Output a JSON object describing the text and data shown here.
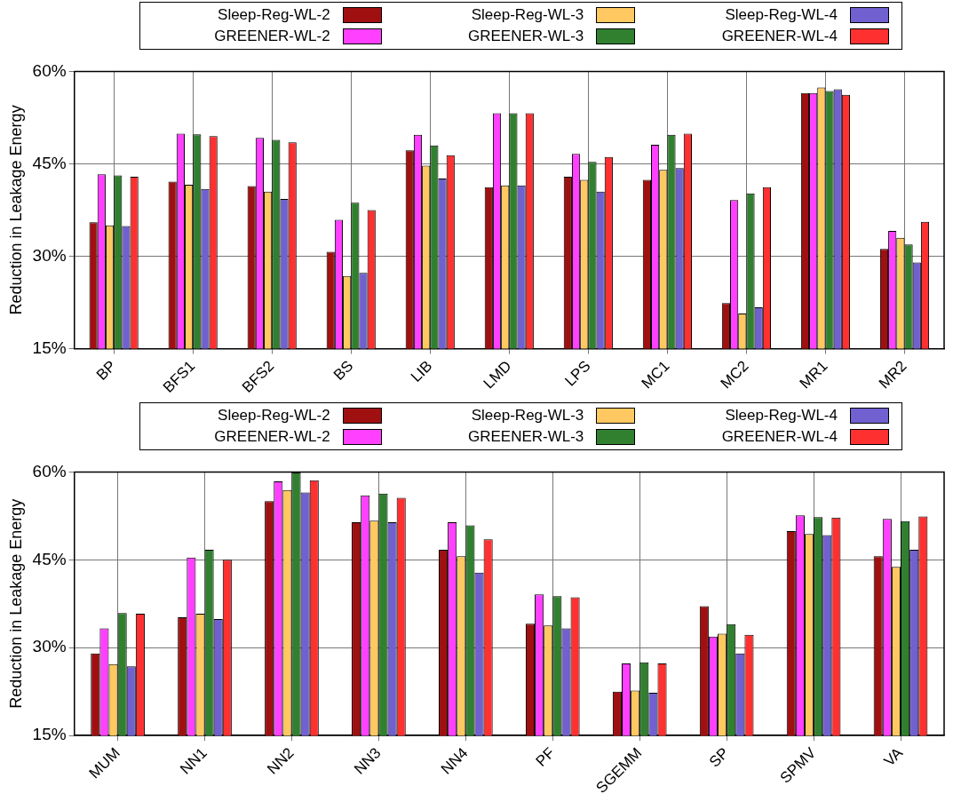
{
  "chart_data": [
    {
      "type": "bar",
      "ylabel": "Reduction in Leakage Energy",
      "categories": [
        "BP",
        "BFS1",
        "BFS2",
        "BS",
        "LIB",
        "LMD",
        "LPS",
        "MC1",
        "MC2",
        "MR1",
        "MR2"
      ],
      "ylim": [
        15,
        60
      ],
      "yticks": [
        {
          "value": 15,
          "label": "15%"
        },
        {
          "value": 30,
          "label": "30%"
        },
        {
          "value": 45,
          "label": "45%"
        },
        {
          "value": 60,
          "label": "60%"
        }
      ],
      "grid": true,
      "legend": "top",
      "series": [
        {
          "name": "Sleep-Reg-WL-2",
          "color": "#a01010",
          "values": [
            35.5,
            42.1,
            41.4,
            30.7,
            47.2,
            41.2,
            42.9,
            42.4,
            22.4,
            56.5,
            31.2
          ]
        },
        {
          "name": "GREENER-WL-2",
          "color": "#ff40ff",
          "values": [
            43.3,
            49.9,
            49.2,
            35.9,
            49.7,
            53.2,
            46.6,
            48.1,
            39.1,
            56.5,
            34.1
          ]
        },
        {
          "name": "Sleep-Reg-WL-3",
          "color": "#ffc860",
          "values": [
            35.0,
            41.6,
            40.5,
            26.8,
            44.7,
            41.5,
            42.4,
            44.0,
            20.7,
            57.4,
            33.0
          ]
        },
        {
          "name": "GREENER-WL-3",
          "color": "#308030",
          "values": [
            43.1,
            49.8,
            48.9,
            38.7,
            48.0,
            53.2,
            45.3,
            49.7,
            40.2,
            56.8,
            31.9
          ]
        },
        {
          "name": "Sleep-Reg-WL-4",
          "color": "#7060d0",
          "values": [
            34.9,
            40.9,
            39.3,
            27.3,
            42.6,
            41.5,
            40.5,
            44.3,
            21.7,
            57.1,
            29.0
          ]
        },
        {
          "name": "GREENER-WL-4",
          "color": "#ff3030",
          "values": [
            42.9,
            49.5,
            48.5,
            37.5,
            46.4,
            53.2,
            46.1,
            49.9,
            41.2,
            56.2,
            35.6
          ]
        }
      ]
    },
    {
      "type": "bar",
      "ylabel": "Reduction in Leakage Energy",
      "categories": [
        "MUM",
        "NN1",
        "NN2",
        "NN3",
        "NN4",
        "PF",
        "SGEMM",
        "SP",
        "SPMV",
        "VA"
      ],
      "ylim": [
        15,
        60
      ],
      "yticks": [
        {
          "value": 15,
          "label": "15%"
        },
        {
          "value": 30,
          "label": "30%"
        },
        {
          "value": 45,
          "label": "45%"
        },
        {
          "value": 60,
          "label": "60%"
        }
      ],
      "grid": true,
      "legend": "top",
      "series": [
        {
          "name": "Sleep-Reg-WL-2",
          "color": "#a01010",
          "values": [
            29.0,
            35.2,
            55.0,
            51.4,
            46.7,
            34.1,
            22.5,
            37.1,
            49.9,
            45.6
          ]
        },
        {
          "name": "GREENER-WL-2",
          "color": "#ff40ff",
          "values": [
            33.3,
            45.4,
            58.4,
            56.0,
            51.4,
            39.1,
            27.3,
            31.9,
            52.6,
            52.0
          ]
        },
        {
          "name": "Sleep-Reg-WL-3",
          "color": "#ffc860",
          "values": [
            27.2,
            35.8,
            56.9,
            51.7,
            45.6,
            33.8,
            22.7,
            32.4,
            49.4,
            43.8
          ]
        },
        {
          "name": "GREENER-WL-3",
          "color": "#308030",
          "values": [
            35.9,
            46.7,
            59.9,
            56.3,
            50.9,
            38.8,
            27.5,
            34.0,
            52.3,
            51.6
          ]
        },
        {
          "name": "Sleep-Reg-WL-4",
          "color": "#7060d0",
          "values": [
            26.8,
            34.9,
            56.5,
            51.4,
            42.8,
            33.3,
            22.3,
            29.0,
            49.2,
            46.7
          ]
        },
        {
          "name": "GREENER-WL-4",
          "color": "#ff3030",
          "values": [
            35.8,
            45.0,
            58.6,
            55.6,
            48.5,
            38.6,
            27.3,
            32.2,
            52.2,
            52.4
          ]
        }
      ]
    }
  ]
}
